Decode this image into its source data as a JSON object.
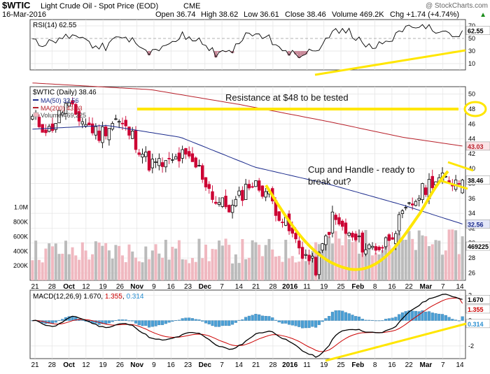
{
  "header": {
    "symbol": "$WTIC",
    "name": "Light Crude Oil - Spot Price (EOD)",
    "exchange": "CME",
    "watermark": "@ StockCharts.com",
    "date": "16-Mar-2016",
    "open": "Open 36.74",
    "high": "High 38.62",
    "low": "Low 36.61",
    "close": "Close 38.46",
    "volume": "Volume 469.2K",
    "change": "Chg +1.74 (+4.74%)",
    "change_arrow": "▲"
  },
  "colors": {
    "up": "#000000",
    "down": "#cc0033",
    "ma50": "#1a2a8c",
    "ma200": "#b8202a",
    "vol_up": "#bbbbbb",
    "vol_down": "#f0b8c0",
    "annotation": "#ffe600",
    "macd_hist": "#4a9fd5",
    "grid": "#e3e3e3"
  },
  "x_labels": [
    "21",
    "28",
    "Oct",
    "12",
    "19",
    "26",
    "Nov",
    "9",
    "16",
    "23",
    "Dec",
    "7",
    "14",
    "21",
    "28",
    "2016",
    "11",
    "19",
    "25",
    "Feb",
    "8",
    "16",
    "22",
    "Mar",
    "7",
    "14"
  ],
  "rsi": {
    "label": "RSI(14)",
    "value_text": "62.55",
    "ticks": [
      "70",
      "50",
      "30",
      "10"
    ],
    "badge": "62.55"
  },
  "price": {
    "legend_main": "$WTIC (Daily) 38.46",
    "legend_ma50": "MA(50) 32.56",
    "legend_ma200": "MA(200) 43.03",
    "legend_volume": "Volume 469,225",
    "ticks": [
      "50",
      "48",
      "46",
      "44",
      "42",
      "40",
      "38",
      "36",
      "34",
      "32",
      "30",
      "28",
      "26"
    ],
    "badges": {
      "close": "38.46",
      "ma200": "43.03",
      "ma50": "32.56",
      "volume": "469225",
      "resistance": "48"
    },
    "volume_ticks": [
      "1.0M",
      "800K",
      "600K",
      "400K",
      "200K"
    ]
  },
  "annotations": {
    "resistance": "Resistance at $48 to be tested",
    "cup_line1": "Cup and Handle - ready to",
    "cup_line2": "break out?"
  },
  "macd": {
    "label": "MACD(12,26,9)",
    "macd_value": "1.670",
    "signal_value": "1.355",
    "hist_value": "0.314",
    "ticks": [
      "2",
      "0",
      "-2"
    ],
    "badges": [
      "1.670",
      "1.355",
      "0.314"
    ]
  },
  "chart_data": {
    "type": "candlestick",
    "title": "$WTIC Light Crude Oil - Spot Price (EOD) CME",
    "x_range": [
      "2015-09-21",
      "2016-03-16"
    ],
    "ylim": [
      25,
      51
    ],
    "ohlc_last": {
      "date": "16-Mar-2016",
      "open": 36.74,
      "high": 38.62,
      "low": 36.61,
      "close": 38.46
    },
    "close_series": [
      [
        "2015-09-21",
        46.7
      ],
      [
        "2015-09-28",
        45.1
      ],
      [
        "2015-10-05",
        48.5
      ],
      [
        "2015-10-12",
        46.4
      ],
      [
        "2015-10-19",
        44.6
      ],
      [
        "2015-10-26",
        46.6
      ],
      [
        "2015-11-02",
        44.3
      ],
      [
        "2015-11-09",
        40.7
      ],
      [
        "2015-11-16",
        40.5
      ],
      [
        "2015-11-23",
        41.7
      ],
      [
        "2015-11-30",
        39.9
      ],
      [
        "2015-12-07",
        35.6
      ],
      [
        "2015-12-14",
        34.7
      ],
      [
        "2015-12-21",
        38.1
      ],
      [
        "2015-12-28",
        37.0
      ],
      [
        "2016-01-04",
        33.2
      ],
      [
        "2016-01-11",
        29.4
      ],
      [
        "2016-01-19",
        26.6
      ],
      [
        "2016-01-25",
        33.4
      ],
      [
        "2016-02-01",
        30.9
      ],
      [
        "2016-02-08",
        29.4
      ],
      [
        "2016-02-16",
        29.6
      ],
      [
        "2016-02-22",
        32.8
      ],
      [
        "2016-03-01",
        35.9
      ],
      [
        "2016-03-07",
        38.5
      ],
      [
        "2016-03-14",
        38.46
      ]
    ],
    "ma50_series": [
      [
        0,
        45.3
      ],
      [
        5,
        45.8
      ],
      [
        10,
        44.2
      ],
      [
        15,
        40.2
      ],
      [
        20,
        37.9
      ],
      [
        25,
        35.1
      ],
      [
        29,
        32.56
      ]
    ],
    "ma200_series": [
      [
        0,
        51.5
      ],
      [
        8,
        50.6
      ],
      [
        14,
        48.6
      ],
      [
        20,
        46.3
      ],
      [
        25,
        44.2
      ],
      [
        29,
        43.03
      ]
    ],
    "series": [
      {
        "name": "MA(50)",
        "last": 32.56
      },
      {
        "name": "MA(200)",
        "last": 43.03
      },
      {
        "name": "Volume",
        "last": 469225
      }
    ],
    "rsi": {
      "period": 14,
      "last": 62.55,
      "ylim": [
        0,
        80
      ]
    },
    "macd": {
      "params": "12,26,9",
      "macd": 1.67,
      "signal": 1.355,
      "histogram": 0.314,
      "ylim": [
        -3,
        2.4
      ]
    },
    "resistance_level": 48,
    "legend": "top-left",
    "grid": true
  }
}
